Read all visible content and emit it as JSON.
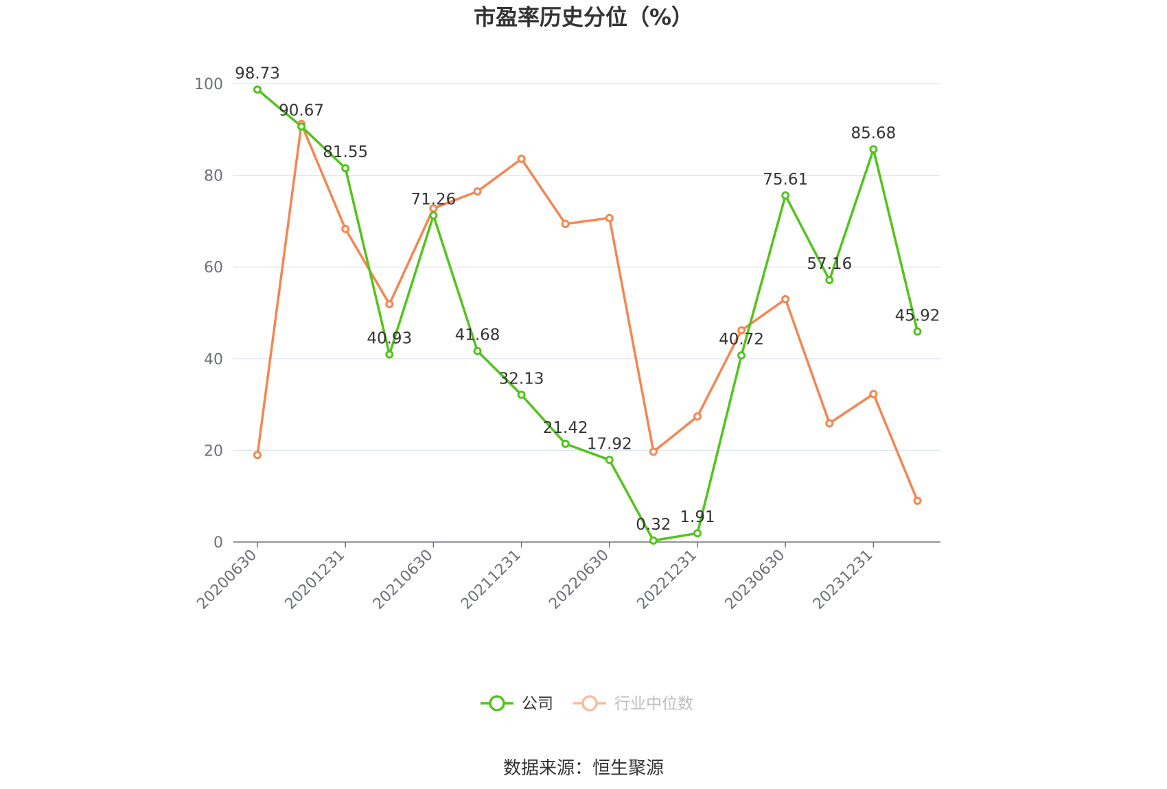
{
  "colors": {
    "company": "#52c41a",
    "industry": "#f5864f",
    "grid": "#dfe4f3",
    "axis": "#6e7079"
  },
  "chart_data": {
    "type": "line",
    "title": "市盈率历史分位（%）",
    "source": "数据来源：恒生聚源",
    "ylim": [
      0,
      100
    ],
    "yticks": [
      0,
      20,
      40,
      60,
      80,
      100
    ],
    "x": [
      "20200630",
      "20200930",
      "20201231",
      "20210331",
      "20210630",
      "20210930",
      "20211231",
      "20220331",
      "20220630",
      "20220930",
      "20221231",
      "20230331",
      "20230630",
      "20230930",
      "20231231",
      "20240331"
    ],
    "x_tick_labels": [
      "20200630",
      "20201231",
      "20210630",
      "20211231",
      "20220630",
      "20221231",
      "20230630",
      "20231231"
    ],
    "grid": "horizontal",
    "legend_position": "bottom-center",
    "series": [
      {
        "name": "公司",
        "color": "#52c41a",
        "show_labels": true,
        "values": [
          98.73,
          90.67,
          81.55,
          40.93,
          71.26,
          41.68,
          32.13,
          21.42,
          17.92,
          0.32,
          1.91,
          40.72,
          75.61,
          57.16,
          85.68,
          45.92
        ],
        "labels": [
          "98.73",
          "90.67",
          "81.55",
          "40.93",
          "71.26",
          "41.68",
          "32.13",
          "21.42",
          "17.92",
          "0.32",
          "1.91",
          "40.72",
          "75.61",
          "57.16",
          "85.68",
          "45.92"
        ]
      },
      {
        "name": "行业中位数",
        "color": "#f5864f",
        "show_labels": false,
        "values": [
          19.0,
          91.2,
          68.3,
          51.9,
          72.8,
          76.5,
          83.6,
          69.4,
          70.7,
          19.7,
          27.4,
          46.2,
          53.0,
          25.9,
          32.3,
          9.0
        ]
      }
    ]
  }
}
